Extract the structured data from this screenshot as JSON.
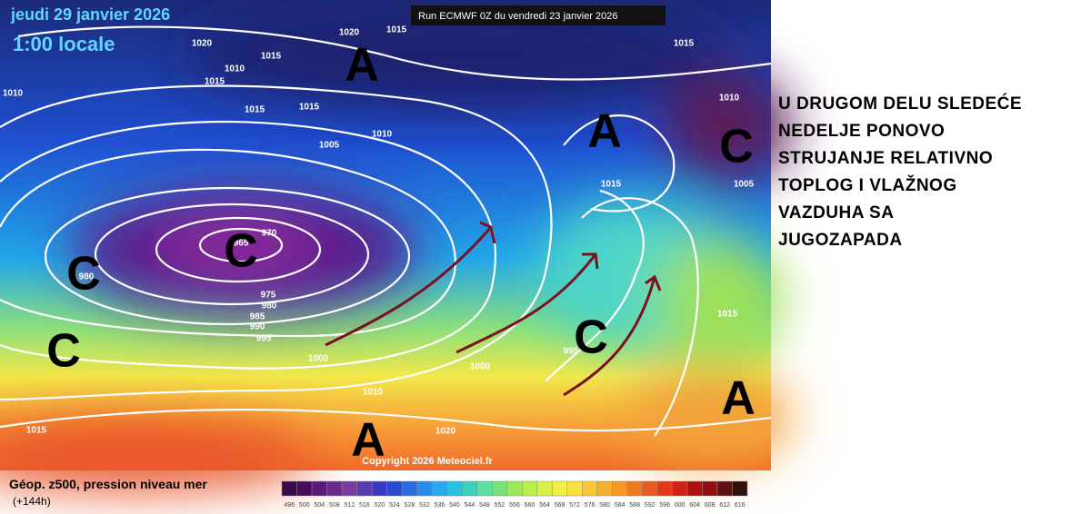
{
  "header": {
    "date": "jeudi 29 janvier 2026",
    "time": "1:00 locale",
    "run": "Run ECMWF 0Z du vendredi 23 janvier 2026"
  },
  "map": {
    "isobar_labels": [
      1020,
      1015,
      1010,
      1015,
      1020,
      1015,
      1015,
      1010,
      1015,
      1015,
      1010,
      1005,
      1010,
      1005,
      1015,
      970,
      965,
      980,
      975,
      980,
      985,
      990,
      995,
      1000,
      1000,
      995,
      1010,
      1015,
      1015,
      1020
    ],
    "pressure_centers": [
      "A",
      "A",
      "C",
      "C",
      "C",
      "C",
      "C",
      "A",
      "A"
    ],
    "copyright": "Copyright 2026 Meteociel.fr"
  },
  "legend": {
    "title": "Géop. z500, pression niveau mer",
    "lead": "(+144h)",
    "scale": [
      496,
      500,
      504,
      508,
      512,
      516,
      520,
      524,
      528,
      532,
      536,
      540,
      544,
      548,
      552,
      556,
      560,
      564,
      568,
      572,
      576,
      580,
      584,
      588,
      592,
      596,
      600,
      604,
      608,
      612,
      616
    ]
  },
  "caption": {
    "lines": [
      "U DRUGOM DELU SLEDEĆE",
      "NEDELJE PONOVO",
      "STRUJANJE RELATIVNO",
      "TOPLOG I VLAŽNOG",
      "VAZDUHA SA",
      "JUGOZAPADA"
    ]
  }
}
